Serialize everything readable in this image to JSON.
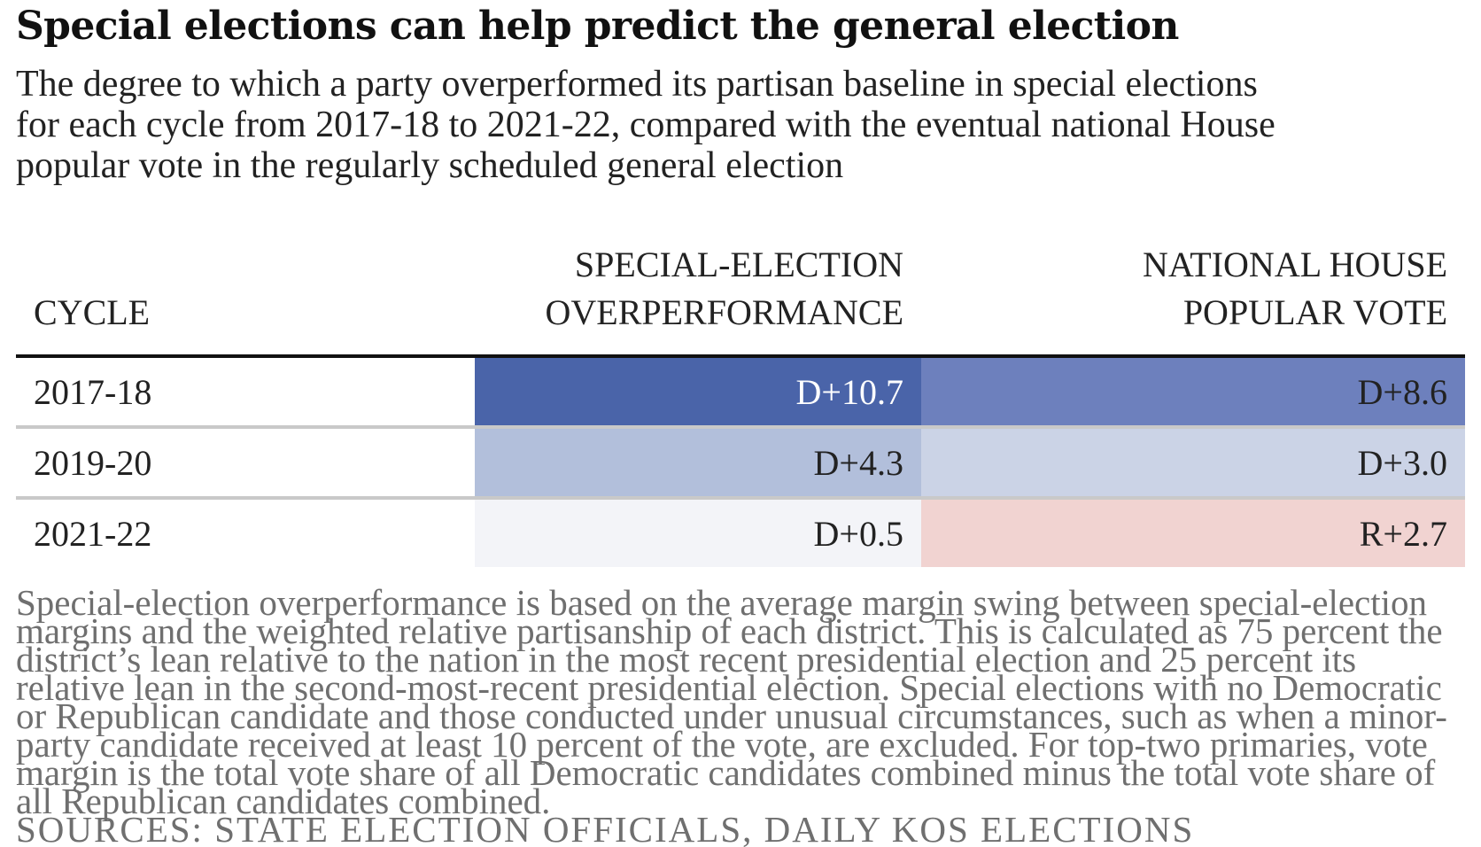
{
  "header": {
    "title": "Special elections can help predict the general election",
    "subtitle_lines": [
      "The degree to which a party overperformed its partisan baseline in special elections",
      "for each cycle from 2017-18 to 2021-22, compared with the eventual national House",
      "popular vote in the regularly scheduled general election"
    ]
  },
  "chart_data": {
    "type": "table",
    "columns": [
      {
        "lines": [
          "",
          "CYCLE"
        ]
      },
      {
        "lines": [
          "SPECIAL-ELECTION",
          "OVERPERFORMANCE"
        ]
      },
      {
        "lines": [
          "NATIONAL HOUSE",
          "POPULAR VOTE"
        ]
      }
    ],
    "rows": [
      {
        "cycle": "2017-18",
        "special": {
          "label": "D+10.7",
          "value": 10.7,
          "color": "#4a64a9",
          "text_color": "#ffffff"
        },
        "house": {
          "label": "D+8.6",
          "value": 8.6,
          "color": "#6d80bd",
          "text_color": "#222222"
        }
      },
      {
        "cycle": "2019-20",
        "special": {
          "label": "D+4.3",
          "value": 4.3,
          "color": "#b2bfdb",
          "text_color": "#222222"
        },
        "house": {
          "label": "D+3.0",
          "value": 3.0,
          "color": "#cbd3e6",
          "text_color": "#222222"
        }
      },
      {
        "cycle": "2021-22",
        "special": {
          "label": "D+0.5",
          "value": 0.5,
          "color": "#f3f4f8",
          "text_color": "#222222"
        },
        "house": {
          "label": "R+2.7",
          "value": -2.7,
          "color": "#f1d3d1",
          "text_color": "#222222"
        }
      }
    ]
  },
  "footnote": {
    "text": "Special-election overperformance is based on the average margin swing between special-election margins and the weighted relative partisanship of each district. This is calculated as 75 percent the district’s lean relative to the nation in the most recent presidential election and 25 percent its relative lean in the second-most-recent presidential election. Special elections with no Democratic or Republican candidate and those conducted under unusual circumstances, such as when a minor-party candidate received at least 10 percent of the vote, are excluded. For top-two primaries, vote margin is the total vote share of all Democratic candidates combined minus the total vote share of all Republican candidates combined.",
    "sources": "SOURCES: STATE ELECTION OFFICIALS, DAILY KOS ELECTIONS"
  }
}
